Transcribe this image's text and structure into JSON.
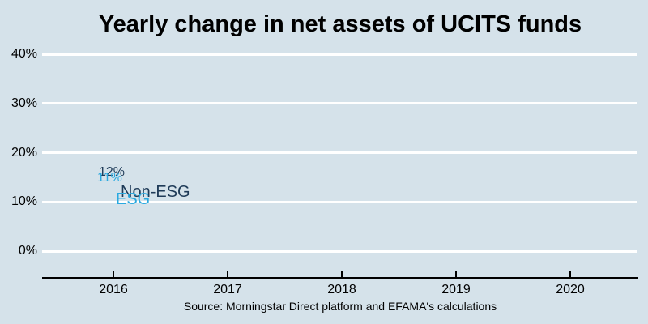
{
  "title": "Yearly change in net assets of UCITS funds",
  "source": "Source: Morningstar Direct platform and EFAMA's calculations",
  "colors": {
    "background": "#D5E2EA",
    "gridline": "#FFFFFF",
    "axis": "#000000",
    "text": "#000000",
    "non_esg_series": "#1E3A57",
    "esg_series": "#29A9E0"
  },
  "y_axis": {
    "ticks": [
      {
        "value": 40,
        "label": "40%"
      },
      {
        "value": 30,
        "label": "30%"
      },
      {
        "value": 20,
        "label": "20%"
      },
      {
        "value": 10,
        "label": "10%"
      },
      {
        "value": 0,
        "label": "0%"
      }
    ]
  },
  "x_axis": {
    "ticks": [
      {
        "label": "2016"
      },
      {
        "label": "2017"
      },
      {
        "label": "2018"
      },
      {
        "label": "2019"
      },
      {
        "label": "2020"
      }
    ]
  },
  "chart_data": {
    "type": "line",
    "title": "Yearly change in net assets of UCITS funds",
    "categories": [
      2016,
      2017,
      2018,
      2019,
      2020
    ],
    "series": [
      {
        "name": "Non-ESG",
        "color": "#1E3A57",
        "values": [
          12,
          null,
          null,
          null,
          null
        ],
        "point_labels": [
          "12%",
          null,
          null,
          null,
          null
        ]
      },
      {
        "name": "ESG",
        "color": "#29A9E0",
        "values": [
          11,
          null,
          null,
          null,
          null
        ],
        "point_labels": [
          "11%",
          null,
          null,
          null,
          null
        ]
      }
    ],
    "ylim": [
      0,
      40
    ],
    "ytick_labels": [
      "0%",
      "10%",
      "20%",
      "30%",
      "40%"
    ],
    "xtick_labels": [
      "2016",
      "2017",
      "2018",
      "2019",
      "2020"
    ],
    "xlabel": "",
    "ylabel": "",
    "grid": "horizontal",
    "legend_position": "inline-next-to-points",
    "annotations": [
      {
        "text": "12%",
        "series": "Non-ESG",
        "x": 2016,
        "y": 12
      },
      {
        "text": "11%",
        "series": "ESG",
        "x": 2016,
        "y": 11
      },
      {
        "text": "Non-ESG",
        "series": "Non-ESG",
        "x": 2016,
        "y": 12
      },
      {
        "text": "ESG",
        "series": "ESG",
        "x": 2016,
        "y": 11
      }
    ]
  }
}
